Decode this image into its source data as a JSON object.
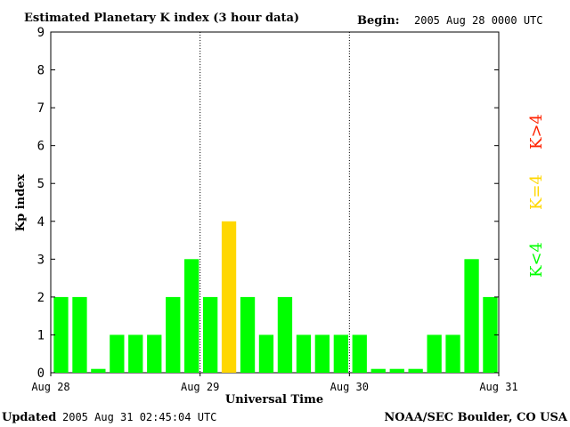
{
  "header": {
    "title": "Estimated Planetary K index (3 hour data)",
    "begin_label": "Begin:",
    "begin_value": "2005 Aug 28 0000 UTC"
  },
  "footer": {
    "updated_label": "Updated",
    "updated_value": "2005 Aug 31 02:45:04 UTC",
    "source": "NOAA/SEC Boulder, CO USA"
  },
  "legend": {
    "low": "K<4",
    "mid": "K=4",
    "high": "K>4"
  },
  "colors": {
    "low": "#00ff00",
    "mid": "#ffd700",
    "high": "#ff2200",
    "axis": "#000000"
  },
  "chart_data": {
    "type": "bar",
    "title": "Estimated Planetary K index (3 hour data)",
    "xlabel": "Universal Time",
    "ylabel": "Kp index",
    "ylim": [
      0,
      9
    ],
    "yticks": [
      "0",
      "1",
      "2",
      "3",
      "4",
      "5",
      "6",
      "7",
      "8",
      "9"
    ],
    "xticks": [
      "Aug 28",
      "Aug 29",
      "Aug 30",
      "Aug 31"
    ],
    "day_separators": [
      "Aug 29",
      "Aug 30"
    ],
    "grid": false,
    "legend_position": "right",
    "values": [
      2,
      2,
      0.1,
      1,
      1,
      1,
      2,
      3,
      2,
      4,
      2,
      1,
      2,
      1,
      1,
      1,
      1,
      0.1,
      0.1,
      0.1,
      1,
      1,
      3,
      2
    ]
  }
}
